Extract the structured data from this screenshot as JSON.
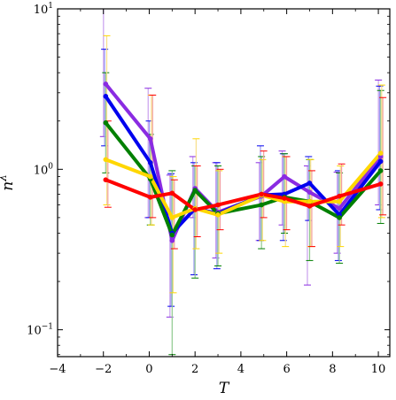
{
  "chart_data": {
    "type": "line",
    "xlabel": "T",
    "ylabel_base": "n",
    "ylabel_sup": "λ",
    "xlim": [
      -4,
      10.5
    ],
    "ylim": [
      0.068,
      10
    ],
    "yscale": "log",
    "grid": false,
    "x_ticks": [
      -4,
      -2,
      0,
      2,
      4,
      6,
      8,
      10
    ],
    "x_tick_labels": [
      "−4",
      "−2",
      "0",
      "2",
      "4",
      "6",
      "8",
      "10"
    ],
    "y_ticks": [
      0.1,
      1,
      10
    ],
    "y_tick_labels": [
      {
        "base": "10",
        "exp": "−1"
      },
      {
        "base": "10",
        "exp": "0"
      },
      {
        "base": "10",
        "exp": "1"
      }
    ],
    "x": [
      -1.9,
      0.05,
      1.0,
      2.0,
      3.0,
      4.9,
      5.9,
      7.0,
      8.3,
      10.1
    ],
    "series": [
      {
        "color": "#8a2be2",
        "light_color": "#c9a0ee",
        "values": [
          3.4,
          1.55,
          0.36,
          0.76,
          0.54,
          0.68,
          0.9,
          0.72,
          0.57,
          1.2
        ],
        "err_low": [
          1.6,
          0.5,
          0.12,
          0.5,
          0.28,
          0.36,
          0.45,
          0.19,
          0.3,
          0.6
        ],
        "err_high": [
          10,
          3.2,
          0.92,
          1.2,
          1.1,
          1.1,
          1.3,
          1.05,
          0.96,
          3.6
        ]
      },
      {
        "color": "#0000ee",
        "light_color": "#9b9bf2",
        "values": [
          2.85,
          1.1,
          0.4,
          0.57,
          0.53,
          0.69,
          0.7,
          0.82,
          0.52,
          1.12
        ],
        "err_low": [
          1.4,
          0.5,
          0.14,
          0.22,
          0.24,
          0.36,
          0.36,
          0.48,
          0.27,
          0.56
        ],
        "err_high": [
          5.6,
          2.0,
          0.94,
          1.1,
          1.1,
          1.4,
          1.25,
          1.2,
          0.98,
          3.3
        ]
      },
      {
        "color": "#008000",
        "light_color": "#8fc98f",
        "values": [
          1.95,
          0.87,
          0.39,
          0.74,
          0.53,
          0.6,
          0.67,
          0.63,
          0.5,
          0.98
        ],
        "err_low": [
          0.95,
          0.45,
          0.07,
          0.21,
          0.25,
          0.32,
          0.4,
          0.27,
          0.26,
          0.46
        ],
        "err_high": [
          4.0,
          1.65,
          0.98,
          1.05,
          1.05,
          1.2,
          1.25,
          1.15,
          0.95,
          3.1
        ]
      },
      {
        "color": "#ffd700",
        "light_color": "#f7df8a",
        "values": [
          1.15,
          0.9,
          0.5,
          0.57,
          0.52,
          0.69,
          0.63,
          0.63,
          0.63,
          1.26
        ],
        "err_low": [
          0.6,
          0.45,
          0.17,
          0.32,
          0.3,
          0.36,
          0.33,
          0.33,
          0.33,
          0.5
        ],
        "err_high": [
          6.8,
          2.9,
          0.9,
          1.55,
          0.98,
          1.15,
          1.2,
          1.15,
          1.05,
          3.35
        ]
      },
      {
        "color": "#ff0000",
        "light_color": "#f2a0a0",
        "values": [
          0.86,
          0.67,
          0.71,
          0.56,
          0.6,
          0.7,
          0.66,
          0.59,
          0.68,
          0.81
        ],
        "err_low": [
          0.58,
          0.5,
          0.32,
          0.38,
          0.42,
          0.5,
          0.42,
          0.33,
          0.45,
          0.52
        ],
        "err_high": [
          2.0,
          2.9,
          0.86,
          1.05,
          1.0,
          1.3,
          1.2,
          0.98,
          1.08,
          2.8
        ]
      }
    ]
  }
}
